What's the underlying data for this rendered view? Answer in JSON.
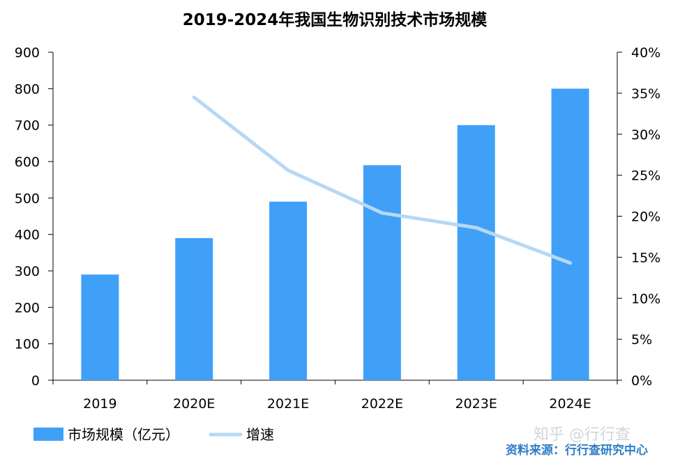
{
  "chart_data": {
    "type": "bar",
    "title": "2019-2024年我国生物识别技术市场规模",
    "categories": [
      "2019",
      "2020E",
      "2021E",
      "2022E",
      "2023E",
      "2024E"
    ],
    "series": [
      {
        "name": "市场规模（亿元）",
        "type": "bar",
        "axis": "left",
        "values": [
          290,
          390,
          490,
          590,
          700,
          800
        ]
      },
      {
        "name": "增速",
        "type": "line",
        "axis": "right",
        "values": [
          null,
          0.345,
          0.256,
          0.204,
          0.186,
          0.143
        ]
      }
    ],
    "ylim": [
      0,
      900
    ],
    "yticks": [
      "0",
      "100",
      "200",
      "300",
      "400",
      "500",
      "600",
      "700",
      "800",
      "900"
    ],
    "y2lim": [
      0,
      0.4
    ],
    "y2ticks": [
      "0%",
      "5%",
      "10%",
      "15%",
      "20%",
      "25%",
      "30%",
      "35%",
      "40%"
    ],
    "legend_position": "bottom-left",
    "grid": false,
    "colors": {
      "bar": "#40a0f8",
      "line": "#b6d8f5",
      "source": "#2e7dc6"
    }
  },
  "watermark": "知乎 @行行查",
  "source": "资料来源：行行查研究中心"
}
